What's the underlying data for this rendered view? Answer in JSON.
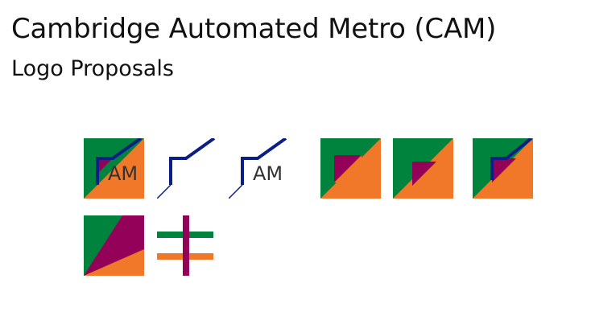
{
  "page": {
    "title": "Cambridge Automated Metro (CAM)",
    "subtitle": "Logo Proposals"
  },
  "logo_text": "AM",
  "colors": {
    "green": "#00843D",
    "orange": "#F07828",
    "purple": "#930158",
    "navy": "#0B1E88"
  }
}
